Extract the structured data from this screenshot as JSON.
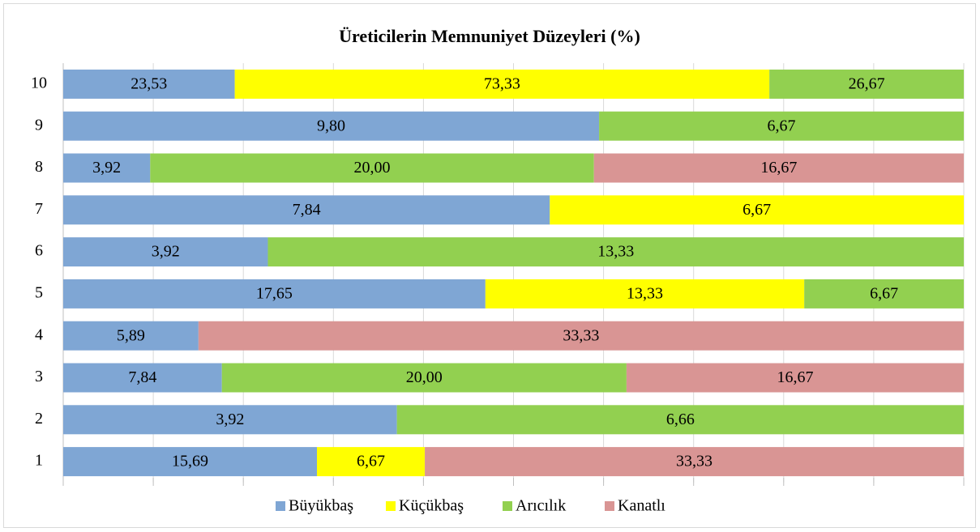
{
  "chart_data": {
    "type": "bar",
    "orientation": "horizontal",
    "stacking": "percent",
    "title": "Üreticilerin  Memnuniyet Düzeyleri (%)",
    "categories": [
      "1",
      "2",
      "3",
      "4",
      "5",
      "6",
      "7",
      "8",
      "9",
      "10"
    ],
    "series": [
      {
        "name": "Büyükbaş",
        "color": "#7fa6d4",
        "values": [
          15.69,
          3.92,
          7.84,
          5.89,
          17.65,
          3.92,
          7.84,
          3.92,
          9.8,
          23.53
        ],
        "value_labels": [
          "15,69",
          "3,92",
          "7,84",
          "5,89",
          "17,65",
          "3,92",
          "7,84",
          "3,92",
          "9,80",
          "23,53"
        ]
      },
      {
        "name": "Küçükbaş",
        "color": "#ffff00",
        "values": [
          6.67,
          null,
          null,
          null,
          13.33,
          null,
          6.67,
          null,
          null,
          73.33
        ],
        "value_labels": [
          "6,67",
          null,
          null,
          null,
          "13,33",
          null,
          "6,67",
          null,
          null,
          "73,33"
        ]
      },
      {
        "name": "Arıcılık",
        "color": "#92d050",
        "values": [
          null,
          6.66,
          20.0,
          null,
          6.67,
          13.33,
          null,
          20.0,
          6.67,
          26.67
        ],
        "value_labels": [
          null,
          "6,66",
          "20,00",
          null,
          "6,67",
          "13,33",
          null,
          "20,00",
          "6,67",
          "26,67"
        ]
      },
      {
        "name": "Kanatlı",
        "color": "#d99594",
        "values": [
          33.33,
          null,
          16.67,
          33.33,
          null,
          null,
          null,
          16.67,
          null,
          null
        ],
        "value_labels": [
          "33,33",
          null,
          "16,67",
          "33,33",
          null,
          null,
          null,
          "16,67",
          null,
          null
        ]
      }
    ],
    "xlim": [
      0,
      100
    ],
    "xticks": [
      0,
      10,
      20,
      30,
      40,
      50,
      60,
      70,
      80,
      90,
      100
    ],
    "tick_labels": false,
    "grid": true,
    "legend": "bottom"
  }
}
